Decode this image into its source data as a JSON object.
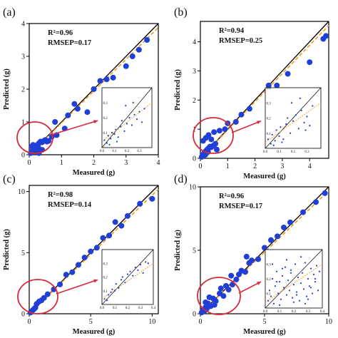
{
  "colors": {
    "points": "#1f3fd6",
    "identity_line": "#000000",
    "fit_line": "#f39a1b",
    "highlight": "#d62a3a"
  },
  "chart_data": [
    {
      "type": "scatter",
      "panel": "(a)",
      "xlabel": "Measured (g)",
      "ylabel": "Predicted (g)",
      "stat_r2": "R²=0.96",
      "stat_rmsep": "RMSEP=0.17",
      "xlim": [
        0,
        4
      ],
      "ylim": [
        0,
        4
      ],
      "xticks": [
        0,
        1,
        2,
        3,
        4
      ],
      "yticks": [
        0,
        1,
        2,
        3,
        4
      ],
      "identity_line": true,
      "fit_line": true,
      "series": [
        {
          "x": [
            0.05,
            0.08,
            0.1,
            0.12,
            0.15,
            0.18,
            0.2,
            0.22,
            0.25,
            0.28,
            0.3,
            0.35,
            0.4,
            0.45,
            0.5,
            0.55,
            0.6,
            0.08,
            0.12,
            0.2,
            0.3,
            0.4,
            0.7,
            0.8,
            0.85,
            1.1,
            1.2,
            1.4,
            1.5,
            1.8,
            2.0,
            2.2,
            2.4,
            2.6,
            3.0,
            3.2,
            3.4,
            3.65
          ],
          "y": [
            0.05,
            0.1,
            0.08,
            0.15,
            0.2,
            0.12,
            0.25,
            0.18,
            0.3,
            0.22,
            0.35,
            0.4,
            0.38,
            0.42,
            0.45,
            0.4,
            0.42,
            0.25,
            0.3,
            0.1,
            0.05,
            0.15,
            0.55,
            1.0,
            0.6,
            0.8,
            1.2,
            1.55,
            1.4,
            1.3,
            2.0,
            2.25,
            2.3,
            2.35,
            2.7,
            3.0,
            3.2,
            3.5
          ]
        }
      ],
      "inset": {
        "xlim": [
          0,
          0.4
        ],
        "ylim": [
          0,
          0.4
        ],
        "xticks": [
          0.0,
          0.1,
          0.2,
          0.3
        ],
        "yticks": [
          0.1,
          0.2,
          0.3
        ],
        "x": [
          0.02,
          0.04,
          0.05,
          0.07,
          0.08,
          0.1,
          0.11,
          0.13,
          0.15,
          0.16,
          0.18,
          0.2,
          0.22,
          0.24,
          0.26,
          0.28,
          0.3,
          0.32,
          0.34,
          0.06,
          0.12,
          0.19,
          0.25
        ],
        "y": [
          0.05,
          0.03,
          0.08,
          0.06,
          0.1,
          0.09,
          0.12,
          0.07,
          0.14,
          0.18,
          0.11,
          0.16,
          0.2,
          0.15,
          0.22,
          0.19,
          0.24,
          0.17,
          0.26,
          0.02,
          0.04,
          0.28,
          0.3
        ]
      }
    },
    {
      "type": "scatter",
      "panel": "(b)",
      "xlabel": "Measured (g)",
      "ylabel": "Predicted (g)",
      "stat_r2": "R²=0.94",
      "stat_rmsep": "RMSEP=0.25",
      "xlim": [
        0,
        4.7
      ],
      "ylim": [
        0,
        4.7
      ],
      "xticks": [
        0,
        1,
        2,
        3,
        4
      ],
      "yticks": [
        0,
        1,
        2,
        3,
        4
      ],
      "identity_line": true,
      "fit_line": true,
      "series": [
        {
          "x": [
            0.05,
            0.08,
            0.1,
            0.12,
            0.15,
            0.18,
            0.2,
            0.22,
            0.25,
            0.28,
            0.3,
            0.35,
            0.4,
            0.45,
            0.5,
            0.55,
            0.6,
            0.1,
            0.2,
            0.3,
            0.4,
            0.5,
            0.7,
            0.9,
            1.0,
            1.3,
            1.5,
            1.8,
            2.5,
            2.8,
            3.2,
            4.0,
            4.5,
            4.6
          ],
          "y": [
            0.05,
            0.1,
            0.08,
            0.15,
            0.2,
            0.12,
            0.25,
            0.18,
            0.3,
            0.22,
            0.35,
            0.4,
            0.38,
            0.42,
            0.45,
            0.5,
            0.3,
            0.6,
            0.7,
            0.8,
            0.65,
            0.9,
            0.95,
            1.0,
            1.2,
            1.25,
            1.5,
            1.7,
            2.5,
            2.5,
            2.9,
            3.3,
            4.1,
            4.2
          ]
        }
      ],
      "inset": {
        "xlim": [
          0,
          0.4
        ],
        "ylim": [
          0,
          0.4
        ],
        "xticks": [
          0.0,
          0.1,
          0.2,
          0.3
        ],
        "yticks": [
          0.1,
          0.2,
          0.3,
          0.4
        ],
        "x": [
          0.02,
          0.04,
          0.05,
          0.07,
          0.08,
          0.1,
          0.11,
          0.13,
          0.15,
          0.16,
          0.18,
          0.2,
          0.22,
          0.24,
          0.26,
          0.28,
          0.3,
          0.32,
          0.34,
          0.06,
          0.12,
          0.19,
          0.25,
          0.29
        ],
        "y": [
          0.06,
          0.03,
          0.09,
          0.05,
          0.12,
          0.08,
          0.14,
          0.06,
          0.16,
          0.2,
          0.1,
          0.18,
          0.22,
          0.13,
          0.25,
          0.17,
          0.21,
          0.15,
          0.28,
          0.02,
          0.04,
          0.3,
          0.33,
          0.12
        ]
      }
    },
    {
      "type": "scatter",
      "panel": "(c)",
      "xlabel": "Measured (g)",
      "ylabel": "Predicted (g)",
      "stat_r2": "R²=0.98",
      "stat_rmsep": "RMSEP=0.14",
      "xlim": [
        0,
        10.5
      ],
      "ylim": [
        0,
        10.5
      ],
      "xticks": [
        0,
        5,
        10
      ],
      "yticks": [
        0,
        5,
        10
      ],
      "identity_line": true,
      "fit_line": true,
      "series": [
        {
          "x": [
            0.1,
            0.2,
            0.3,
            0.4,
            0.5,
            0.6,
            0.8,
            1.0,
            1.2,
            1.5,
            2.0,
            2.5,
            3.0,
            3.5,
            4.0,
            4.5,
            5.0,
            5.5,
            6.0,
            6.5,
            7.0,
            7.5,
            8.0,
            9.0,
            10.0
          ],
          "y": [
            0.1,
            0.2,
            0.3,
            0.4,
            0.5,
            0.8,
            1.0,
            1.1,
            1.3,
            1.6,
            2.0,
            2.4,
            3.2,
            3.4,
            4.0,
            4.6,
            5.1,
            5.4,
            6.2,
            6.4,
            7.5,
            7.2,
            8.0,
            9.0,
            9.4
          ]
        }
      ],
      "inset": {
        "xlim": [
          0,
          0.4
        ],
        "ylim": [
          0,
          0.4
        ],
        "xticks": [
          0.0,
          0.1,
          0.2,
          0.3,
          0.4
        ],
        "yticks": [
          0.1,
          0.2,
          0.3
        ],
        "x": [
          0.02,
          0.04,
          0.05,
          0.07,
          0.08,
          0.1,
          0.11,
          0.13,
          0.15,
          0.16,
          0.18,
          0.2,
          0.22,
          0.24,
          0.26,
          0.28,
          0.3,
          0.32,
          0.34,
          0.36
        ],
        "y": [
          0.04,
          0.03,
          0.07,
          0.09,
          0.11,
          0.1,
          0.15,
          0.12,
          0.18,
          0.2,
          0.16,
          0.22,
          0.24,
          0.21,
          0.27,
          0.25,
          0.29,
          0.23,
          0.31,
          0.3
        ]
      }
    },
    {
      "type": "scatter",
      "panel": "(d)",
      "xlabel": "Measured (g)",
      "ylabel": "Predicted (g)",
      "stat_r2": "R²=0.96",
      "stat_rmsep": "RMSEP=0.17",
      "xlim": [
        0,
        10
      ],
      "ylim": [
        0,
        10
      ],
      "xticks": [
        0,
        5,
        10
      ],
      "yticks": [
        0,
        5,
        10
      ],
      "identity_line": true,
      "fit_line": true,
      "series": [
        {
          "x": [
            0.1,
            0.2,
            0.3,
            0.4,
            0.5,
            0.6,
            0.8,
            1.0,
            1.2,
            1.5,
            1.8,
            2.0,
            2.2,
            2.5,
            2.8,
            3.0,
            3.2,
            3.5,
            3.8,
            4.0,
            4.5,
            5.0,
            5.5,
            6.0,
            6.5,
            7.0,
            8.0,
            9.0,
            9.7,
            0.4,
            0.7,
            1.1,
            1.6,
            2.4,
            3.6
          ],
          "y": [
            0.1,
            0.3,
            0.2,
            0.5,
            0.4,
            0.8,
            0.6,
            1.2,
            1.0,
            1.6,
            1.4,
            2.2,
            1.9,
            2.3,
            2.7,
            3.1,
            3.4,
            3.3,
            4.0,
            4.2,
            4.3,
            5.2,
            5.8,
            6.1,
            6.8,
            7.2,
            8.0,
            8.8,
            9.5,
            0.9,
            1.3,
            0.7,
            2.0,
            3.0,
            4.5
          ]
        }
      ],
      "inset": {
        "xlim": [
          0,
          0.4
        ],
        "ylim": [
          0,
          0.4
        ],
        "xticks": [
          0.0,
          0.1,
          0.2,
          0.3,
          0.4
        ],
        "yticks": [
          0.1,
          0.2,
          0.3
        ],
        "x": [
          0.02,
          0.03,
          0.04,
          0.05,
          0.06,
          0.07,
          0.08,
          0.09,
          0.1,
          0.11,
          0.12,
          0.13,
          0.14,
          0.15,
          0.16,
          0.17,
          0.18,
          0.19,
          0.2,
          0.21,
          0.22,
          0.23,
          0.24,
          0.25,
          0.26,
          0.27,
          0.28,
          0.29,
          0.3,
          0.31,
          0.32,
          0.33,
          0.34,
          0.35,
          0.36,
          0.37,
          0.38,
          0.05,
          0.1,
          0.15,
          0.2,
          0.25,
          0.3,
          0.12,
          0.22,
          0.32,
          0.08,
          0.18,
          0.28,
          0.35
        ],
        "y": [
          0.05,
          0.12,
          0.08,
          0.2,
          0.03,
          0.15,
          0.25,
          0.1,
          0.18,
          0.06,
          0.22,
          0.14,
          0.28,
          0.09,
          0.19,
          0.12,
          0.26,
          0.07,
          0.16,
          0.3,
          0.11,
          0.21,
          0.05,
          0.17,
          0.24,
          0.13,
          0.31,
          0.08,
          0.2,
          0.15,
          0.27,
          0.1,
          0.23,
          0.18,
          0.29,
          0.12,
          0.25,
          0.3,
          0.02,
          0.33,
          0.04,
          0.35,
          0.06,
          0.27,
          0.09,
          0.14,
          0.18,
          0.24,
          0.03,
          0.2
        ]
      }
    }
  ]
}
